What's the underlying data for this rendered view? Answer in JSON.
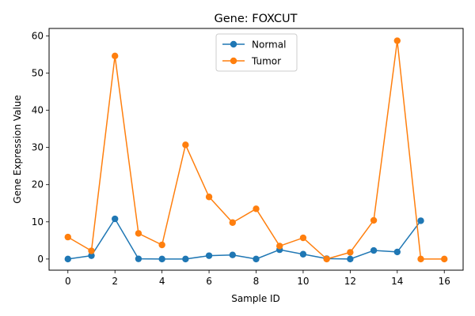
{
  "chart_data": {
    "type": "line",
    "title": "Gene: FOXCUT",
    "xlabel": "Sample ID",
    "ylabel": "Gene Expression Value",
    "xlim": [
      -0.8,
      16.8
    ],
    "ylim": [
      -3,
      62
    ],
    "xticks": [
      0,
      2,
      4,
      6,
      8,
      10,
      12,
      14,
      16
    ],
    "yticks": [
      0,
      10,
      20,
      30,
      40,
      50,
      60
    ],
    "grid": false,
    "legend_position": "top-center",
    "series": [
      {
        "name": "Normal",
        "color": "#1f77b4",
        "x": [
          0,
          1,
          2,
          3,
          4,
          5,
          6,
          7,
          8,
          9,
          10,
          11,
          12,
          13,
          14,
          15
        ],
        "y": [
          0,
          0.9,
          10.8,
          0.05,
          0,
          0,
          0.9,
          1.1,
          0,
          2.5,
          1.3,
          0.1,
          0,
          2.3,
          1.9,
          10.3
        ]
      },
      {
        "name": "Tumor",
        "color": "#ff7f0e",
        "x": [
          0,
          1,
          2,
          3,
          4,
          5,
          6,
          7,
          8,
          9,
          10,
          11,
          12,
          13,
          14,
          15,
          16
        ],
        "y": [
          5.9,
          2.2,
          54.6,
          6.9,
          3.8,
          30.7,
          16.7,
          9.8,
          13.5,
          3.5,
          5.7,
          0,
          1.8,
          10.4,
          58.7,
          0,
          0
        ]
      }
    ]
  }
}
